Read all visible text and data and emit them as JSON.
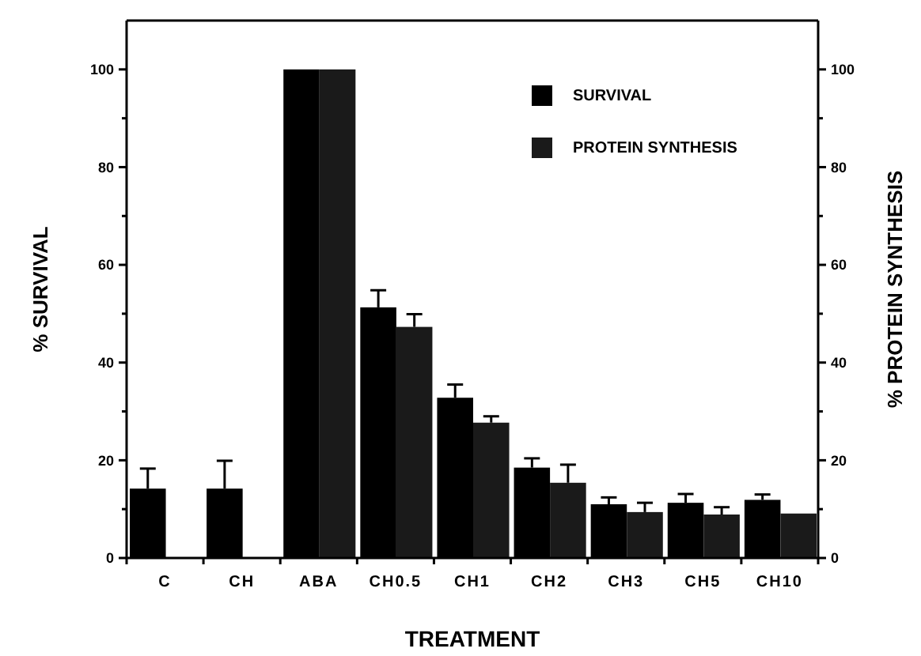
{
  "chart_data": {
    "type": "bar",
    "xlabel": "TREATMENT",
    "ylabel": "% SURVIVAL",
    "y2label": "% PROTEIN SYNTHESIS",
    "categories": [
      "C",
      "CH",
      "ABA",
      "CH0.5",
      "CH1",
      "CH2",
      "CH3",
      "CH5",
      "CH10"
    ],
    "series": [
      {
        "name": "SURVIVAL",
        "color": "#000000",
        "values": [
          14.2,
          14.2,
          100,
          51.3,
          32.8,
          18.5,
          11.0,
          11.3,
          11.9
        ],
        "errors": [
          4.1,
          5.7,
          null,
          3.5,
          2.7,
          1.9,
          1.4,
          1.8,
          1.1
        ]
      },
      {
        "name": "PROTEIN SYNTHESIS",
        "color": "#1a1a1a",
        "values": [
          null,
          null,
          100,
          47.3,
          27.7,
          15.4,
          9.4,
          8.9,
          9.1
        ],
        "errors": [
          null,
          null,
          null,
          2.6,
          1.3,
          3.7,
          1.9,
          1.5,
          null
        ]
      }
    ],
    "ylim": [
      0,
      110
    ],
    "yticks": [
      0,
      {
        "value": 10,
        "label": null
      },
      20,
      {
        "value": 30,
        "label": null
      },
      40,
      {
        "value": 50,
        "label": null
      },
      60,
      {
        "value": 70,
        "label": null
      },
      80,
      {
        "value": 90,
        "label": null
      },
      100
    ],
    "y2lim": [
      0,
      110
    ],
    "y2ticks": [
      0,
      {
        "value": 10,
        "label": null
      },
      20,
      {
        "value": 30,
        "label": null
      },
      40,
      {
        "value": 50,
        "label": null
      },
      60,
      {
        "value": 70,
        "label": null
      },
      80,
      {
        "value": 90,
        "label": null
      },
      100
    ],
    "legend": "top right",
    "grid": false
  }
}
